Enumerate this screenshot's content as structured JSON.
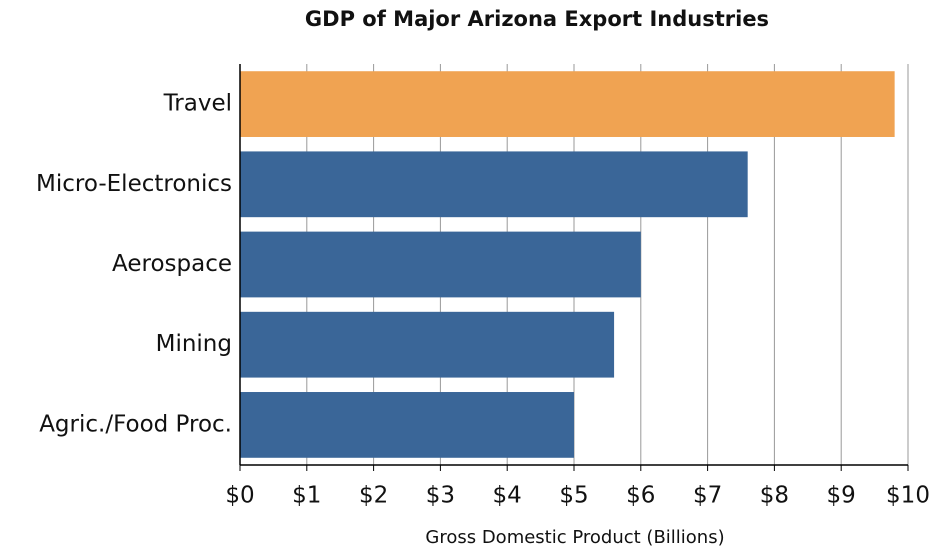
{
  "chart_data": {
    "type": "bar",
    "orientation": "horizontal",
    "title": "GDP of Major Arizona Export Industries",
    "x_label": "Gross Domestic Product (Billions)",
    "categories": [
      "Travel",
      "Micro-Electronics",
      "Aerospace",
      "Mining",
      "Agric./Food Proc."
    ],
    "values": [
      9.8,
      7.6,
      6.0,
      5.6,
      5.0
    ],
    "colors": [
      "#f0a352",
      "#3a6698",
      "#3a6698",
      "#3a6698",
      "#3a6698"
    ],
    "xlim": [
      0,
      10
    ],
    "xticks": [
      {
        "value": 0,
        "label": "$0"
      },
      {
        "value": 1,
        "label": "$1"
      },
      {
        "value": 2,
        "label": "$2"
      },
      {
        "value": 3,
        "label": "$3"
      },
      {
        "value": 4,
        "label": "$4"
      },
      {
        "value": 5,
        "label": "$5"
      },
      {
        "value": 6,
        "label": "$6"
      },
      {
        "value": 7,
        "label": "$7"
      },
      {
        "value": 8,
        "label": "$8"
      },
      {
        "value": 9,
        "label": "$9"
      },
      {
        "value": 10,
        "label": "$10"
      }
    ],
    "grid": true
  }
}
